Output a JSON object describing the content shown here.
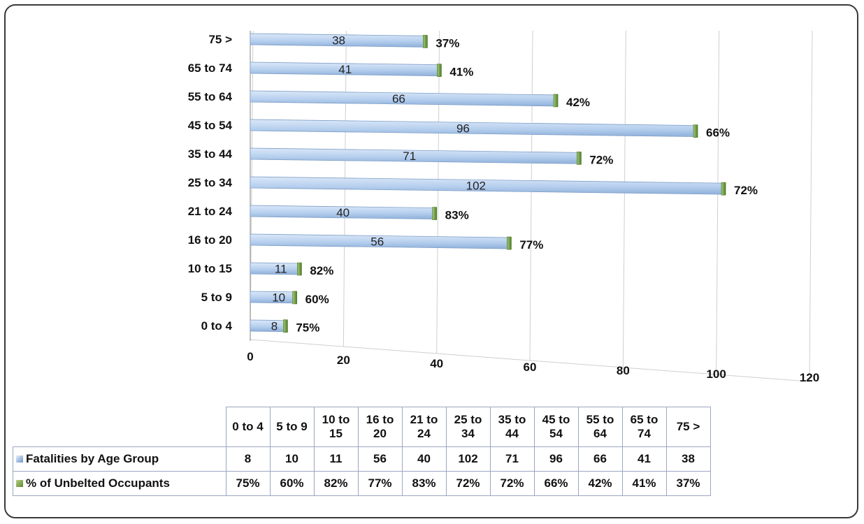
{
  "chart_data": {
    "type": "bar",
    "orientation": "horizontal",
    "categories": [
      "0 to 4",
      "5 to 9",
      "10 to 15",
      "16 to 20",
      "21 to 24",
      "25 to 34",
      "35 to 44",
      "45 to 54",
      "55 to 64",
      "65 to 74",
      "75 >"
    ],
    "series": [
      {
        "name": "Fatalities by Age Group",
        "values": [
          8,
          10,
          11,
          56,
          40,
          102,
          71,
          96,
          66,
          41,
          38
        ],
        "color": "#b9d1ef"
      },
      {
        "name": "% of Unbelted Occupants",
        "values": [
          75,
          60,
          82,
          77,
          83,
          72,
          72,
          66,
          42,
          41,
          37
        ],
        "labels": [
          "75%",
          "60%",
          "82%",
          "77%",
          "83%",
          "72%",
          "72%",
          "66%",
          "42%",
          "41%",
          "37%"
        ],
        "color": "#7aa83e"
      }
    ],
    "xlim": [
      0,
      120
    ],
    "xticks": [
      0,
      20,
      40,
      60,
      80,
      100,
      120
    ],
    "grid": true,
    "legend": "data-table below chart",
    "title": "",
    "xlabel": "",
    "ylabel": ""
  },
  "table": {
    "headers": [
      "0 to 4",
      "5 to 9",
      "10 to\n15",
      "16 to\n20",
      "21 to\n24",
      "25 to\n34",
      "35 to\n44",
      "45 to\n54",
      "55 to\n64",
      "65 to\n74",
      "75 >"
    ],
    "rows": [
      {
        "name": "Fatalities by Age Group",
        "swatch": "blue",
        "values": [
          "8",
          "10",
          "11",
          "56",
          "40",
          "102",
          "71",
          "96",
          "66",
          "41",
          "38"
        ]
      },
      {
        "name": "% of Unbelted Occupants",
        "swatch": "green",
        "values": [
          "75%",
          "60%",
          "82%",
          "77%",
          "83%",
          "72%",
          "72%",
          "66%",
          "42%",
          "41%",
          "37%"
        ]
      }
    ]
  }
}
